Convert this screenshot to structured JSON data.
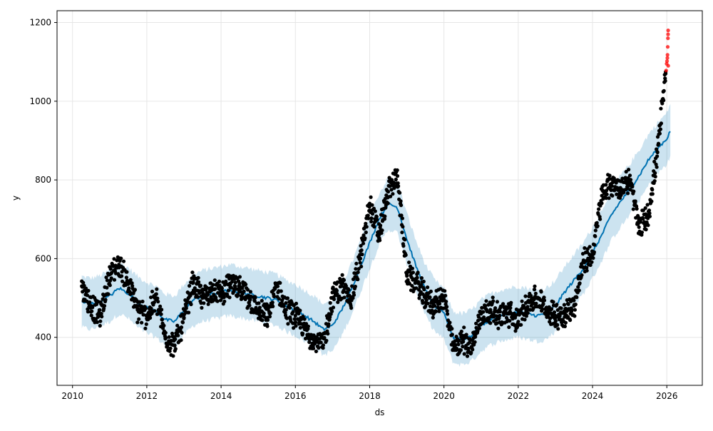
{
  "chart_data": {
    "type": "line",
    "title": "",
    "xlabel": "ds",
    "ylabel": "y",
    "xlim": [
      "2009-08-01",
      "2026-12-15"
    ],
    "ylim": [
      278,
      1230
    ],
    "x_ticks": [
      2010,
      2012,
      2014,
      2016,
      2018,
      2020,
      2022,
      2024,
      2026
    ],
    "y_ticks": [
      400,
      600,
      800,
      1000,
      1200
    ],
    "grid": true,
    "legend": "none",
    "colors": {
      "observed": "#000000",
      "forecast_line": "#0072B2",
      "uncertainty_band": "#0072B2",
      "highlighted_points": "#ff0000"
    },
    "series": [
      {
        "kind": "forecast",
        "x": [
          "2010-04-01",
          "2010-07-01",
          "2010-10-01",
          "2011-01-01",
          "2011-04-01",
          "2011-07-01",
          "2011-10-01",
          "2012-01-01",
          "2012-04-01",
          "2012-07-01",
          "2012-10-01",
          "2013-01-01",
          "2013-04-01",
          "2013-07-01",
          "2013-10-01",
          "2014-01-01",
          "2014-04-01",
          "2014-07-01",
          "2014-10-01",
          "2015-01-01",
          "2015-04-01",
          "2015-07-01",
          "2015-10-01",
          "2016-01-01",
          "2016-04-01",
          "2016-07-01",
          "2016-10-01",
          "2017-01-01",
          "2017-04-01",
          "2017-07-01",
          "2017-10-01",
          "2018-01-01",
          "2018-04-01",
          "2018-07-01",
          "2018-10-01",
          "2019-01-01",
          "2019-04-01",
          "2019-07-01",
          "2019-10-01",
          "2020-01-01",
          "2020-04-01",
          "2020-07-01",
          "2020-10-01",
          "2021-01-01",
          "2021-04-01",
          "2021-07-01",
          "2021-10-01",
          "2022-01-01",
          "2022-04-01",
          "2022-07-01",
          "2022-10-01",
          "2023-01-01",
          "2023-04-01",
          "2023-07-01",
          "2023-10-01",
          "2024-01-01",
          "2024-04-01",
          "2024-07-01",
          "2024-10-01",
          "2025-01-01",
          "2025-04-01",
          "2025-07-01",
          "2025-10-01",
          "2026-01-01",
          "2026-02-05"
        ],
        "values": [
          490,
          485,
          492,
          505,
          525,
          512,
          490,
          475,
          465,
          445,
          440,
          470,
          495,
          505,
          510,
          515,
          520,
          515,
          510,
          505,
          500,
          495,
          480,
          470,
          455,
          440,
          420,
          430,
          470,
          520,
          580,
          640,
          700,
          740,
          730,
          650,
          580,
          520,
          480,
          460,
          400,
          395,
          405,
          430,
          445,
          455,
          460,
          465,
          460,
          455,
          460,
          480,
          515,
          545,
          575,
          615,
          660,
          710,
          745,
          775,
          810,
          850,
          880,
          905,
          925
        ],
        "lower": [
          425,
          420,
          428,
          440,
          460,
          448,
          425,
          410,
          400,
          380,
          375,
          405,
          430,
          440,
          445,
          450,
          455,
          450,
          445,
          440,
          435,
          430,
          415,
          405,
          390,
          375,
          355,
          365,
          405,
          455,
          515,
          575,
          635,
          675,
          665,
          585,
          515,
          455,
          415,
          395,
          335,
          330,
          340,
          365,
          380,
          390,
          395,
          400,
          395,
          390,
          395,
          415,
          450,
          480,
          510,
          550,
          595,
          645,
          680,
          710,
          745,
          785,
          815,
          840,
          858
        ],
        "upper": [
          555,
          550,
          557,
          570,
          590,
          577,
          555,
          540,
          530,
          510,
          505,
          535,
          560,
          570,
          575,
          580,
          585,
          580,
          575,
          570,
          565,
          560,
          545,
          535,
          520,
          505,
          485,
          495,
          535,
          585,
          645,
          705,
          765,
          805,
          795,
          715,
          645,
          585,
          545,
          525,
          465,
          460,
          470,
          495,
          510,
          520,
          525,
          530,
          525,
          520,
          525,
          545,
          580,
          610,
          640,
          680,
          725,
          775,
          810,
          840,
          875,
          915,
          945,
          970,
          995
        ]
      },
      {
        "kind": "observed",
        "x": [
          "2010-04-01",
          "2010-07-01",
          "2010-10-01",
          "2011-01-01",
          "2011-04-01",
          "2011-07-01",
          "2011-10-01",
          "2012-01-01",
          "2012-04-01",
          "2012-07-01",
          "2012-10-01",
          "2013-01-01",
          "2013-04-01",
          "2013-07-01",
          "2013-10-01",
          "2014-01-01",
          "2014-04-01",
          "2014-07-01",
          "2014-10-01",
          "2015-01-01",
          "2015-04-01",
          "2015-07-01",
          "2015-10-01",
          "2016-01-01",
          "2016-04-01",
          "2016-07-01",
          "2016-10-01",
          "2017-01-01",
          "2017-04-01",
          "2017-07-01",
          "2017-10-01",
          "2018-01-01",
          "2018-04-01",
          "2018-07-01",
          "2018-10-01",
          "2019-01-01",
          "2019-04-01",
          "2019-07-01",
          "2019-10-01",
          "2020-01-01",
          "2020-04-01",
          "2020-07-01",
          "2020-10-01",
          "2021-01-01",
          "2021-04-01",
          "2021-07-01",
          "2021-10-01",
          "2022-01-01",
          "2022-04-01",
          "2022-07-01",
          "2022-10-01",
          "2023-01-01",
          "2023-04-01",
          "2023-07-01",
          "2023-10-01",
          "2024-01-01",
          "2024-04-01",
          "2024-07-01",
          "2024-10-01",
          "2025-01-01",
          "2025-04-01",
          "2025-07-01",
          "2025-10-01",
          "2025-12-20"
        ],
        "values": [
          530,
          480,
          455,
          560,
          585,
          540,
          470,
          455,
          500,
          400,
          380,
          450,
          540,
          500,
          520,
          510,
          535,
          520,
          500,
          465,
          450,
          530,
          470,
          455,
          420,
          395,
          380,
          500,
          530,
          500,
          600,
          740,
          660,
          770,
          810,
          560,
          540,
          500,
          480,
          505,
          370,
          395,
          375,
          460,
          470,
          455,
          460,
          440,
          490,
          500,
          470,
          455,
          460,
          480,
          590,
          610,
          760,
          790,
          780,
          800,
          680,
          710,
          870,
          1070
        ]
      },
      {
        "kind": "highlighted",
        "x": [
          "2025-12-25",
          "2025-12-30",
          "2026-01-03",
          "2026-01-06",
          "2026-01-08",
          "2026-01-10",
          "2026-01-12",
          "2026-01-13",
          "2026-01-14",
          "2026-01-15"
        ],
        "values": [
          1078,
          1095,
          1102,
          1110,
          1118,
          1138,
          1160,
          1170,
          1180,
          1090
        ]
      }
    ]
  }
}
